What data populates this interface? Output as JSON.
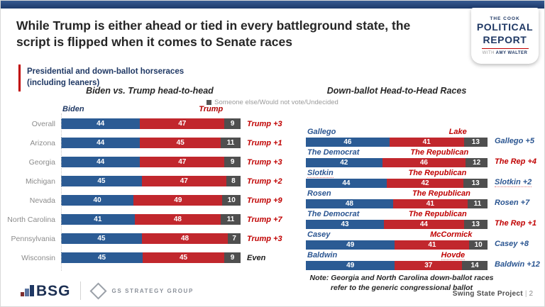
{
  "slide": {
    "title_lines": [
      "While Trump is either ahead or tied in every battleground state, the",
      "script is flipped when it comes to Senate races"
    ],
    "brand": {
      "line1": "THE COOK",
      "line2": "POLITICAL",
      "line3": "REPORT",
      "with_word": "WITH",
      "with_name": "AMY WALTER"
    },
    "subtitle_lines": [
      "Presidential and down-ballot horseraces",
      "(including leaners)"
    ],
    "legend_label": "Someone else/Would not vote/Undecided",
    "note_lines": [
      "Note: Georgia and North Carolina down-ballot races",
      "refer to the generic congressional ballot"
    ],
    "footer": {
      "bsg": "BSG",
      "gs": "GS STRATEGY GROUP",
      "project": "Swing State Project",
      "page": "2"
    }
  },
  "colors": {
    "dem_blue": "#2b5b94",
    "rep_red": "#c1272d",
    "other_gray": "#4f4f4f",
    "accent_red": "#c00000",
    "navy": "#1f3864"
  },
  "chart_data": [
    {
      "type": "bar",
      "title": "Biden vs. Trump head-to-head",
      "stacked": true,
      "axis_max": 100,
      "series_labels": [
        "Biden",
        "Trump",
        "Someone else/Would not vote/Undecided"
      ],
      "header_dem_label": "Biden",
      "header_rep_label": "Trump",
      "rows": [
        {
          "label": "Overall",
          "dem": 44,
          "rep": 47,
          "other": 9,
          "margin": "Trump +3",
          "margin_color": "red"
        },
        {
          "label": "Arizona",
          "dem": 44,
          "rep": 45,
          "other": 11,
          "margin": "Trump +1",
          "margin_color": "red"
        },
        {
          "label": "Georgia",
          "dem": 44,
          "rep": 47,
          "other": 9,
          "margin": "Trump +3",
          "margin_color": "red"
        },
        {
          "label": "Michigan",
          "dem": 45,
          "rep": 47,
          "other": 8,
          "margin": "Trump +2",
          "margin_color": "red"
        },
        {
          "label": "Nevada",
          "dem": 40,
          "rep": 49,
          "other": 10,
          "margin": "Trump +9",
          "margin_color": "red"
        },
        {
          "label": "North Carolina",
          "dem": 41,
          "rep": 48,
          "other": 11,
          "margin": "Trump +7",
          "margin_color": "red"
        },
        {
          "label": "Pennsylvania",
          "dem": 45,
          "rep": 48,
          "other": 7,
          "margin": "Trump +3",
          "margin_color": "red"
        },
        {
          "label": "Wisconsin",
          "dem": 45,
          "rep": 45,
          "other": 9,
          "margin": "Even",
          "margin_color": "black"
        }
      ]
    },
    {
      "type": "bar",
      "title": "Down-ballot Head-to-Head Races",
      "stacked": true,
      "axis_max": 100,
      "rows": [
        {
          "dem_name": "Gallego",
          "rep_name": "Lake",
          "dem": 46,
          "rep": 41,
          "other": 13,
          "margin": "Gallego +5",
          "margin_color": "blue"
        },
        {
          "dem_name": "The Democrat",
          "rep_name": "The Republican",
          "dem": 42,
          "rep": 46,
          "other": 12,
          "margin": "The Rep +4",
          "margin_color": "red"
        },
        {
          "dem_name": "Slotkin",
          "rep_name": "The Republican",
          "dem": 44,
          "rep": 42,
          "other": 13,
          "margin": "Slotkin +2",
          "margin_color": "blue",
          "squiggle_dem": true,
          "squiggle_margin": true
        },
        {
          "dem_name": "Rosen",
          "rep_name": "The Republican",
          "dem": 48,
          "rep": 41,
          "other": 11,
          "margin": "Rosen +7",
          "margin_color": "blue"
        },
        {
          "dem_name": "The Democrat",
          "rep_name": "The Republican",
          "dem": 43,
          "rep": 44,
          "other": 13,
          "margin": "The Rep +1",
          "margin_color": "red"
        },
        {
          "dem_name": "Casey",
          "rep_name": "McCormick",
          "dem": 49,
          "rep": 41,
          "other": 10,
          "margin": "Casey +8",
          "margin_color": "blue"
        },
        {
          "dem_name": "Baldwin",
          "rep_name": "Hovde",
          "dem": 49,
          "rep": 37,
          "other": 14,
          "margin": "Baldwin +12",
          "margin_color": "blue",
          "squiggle_rep": true
        }
      ]
    }
  ]
}
